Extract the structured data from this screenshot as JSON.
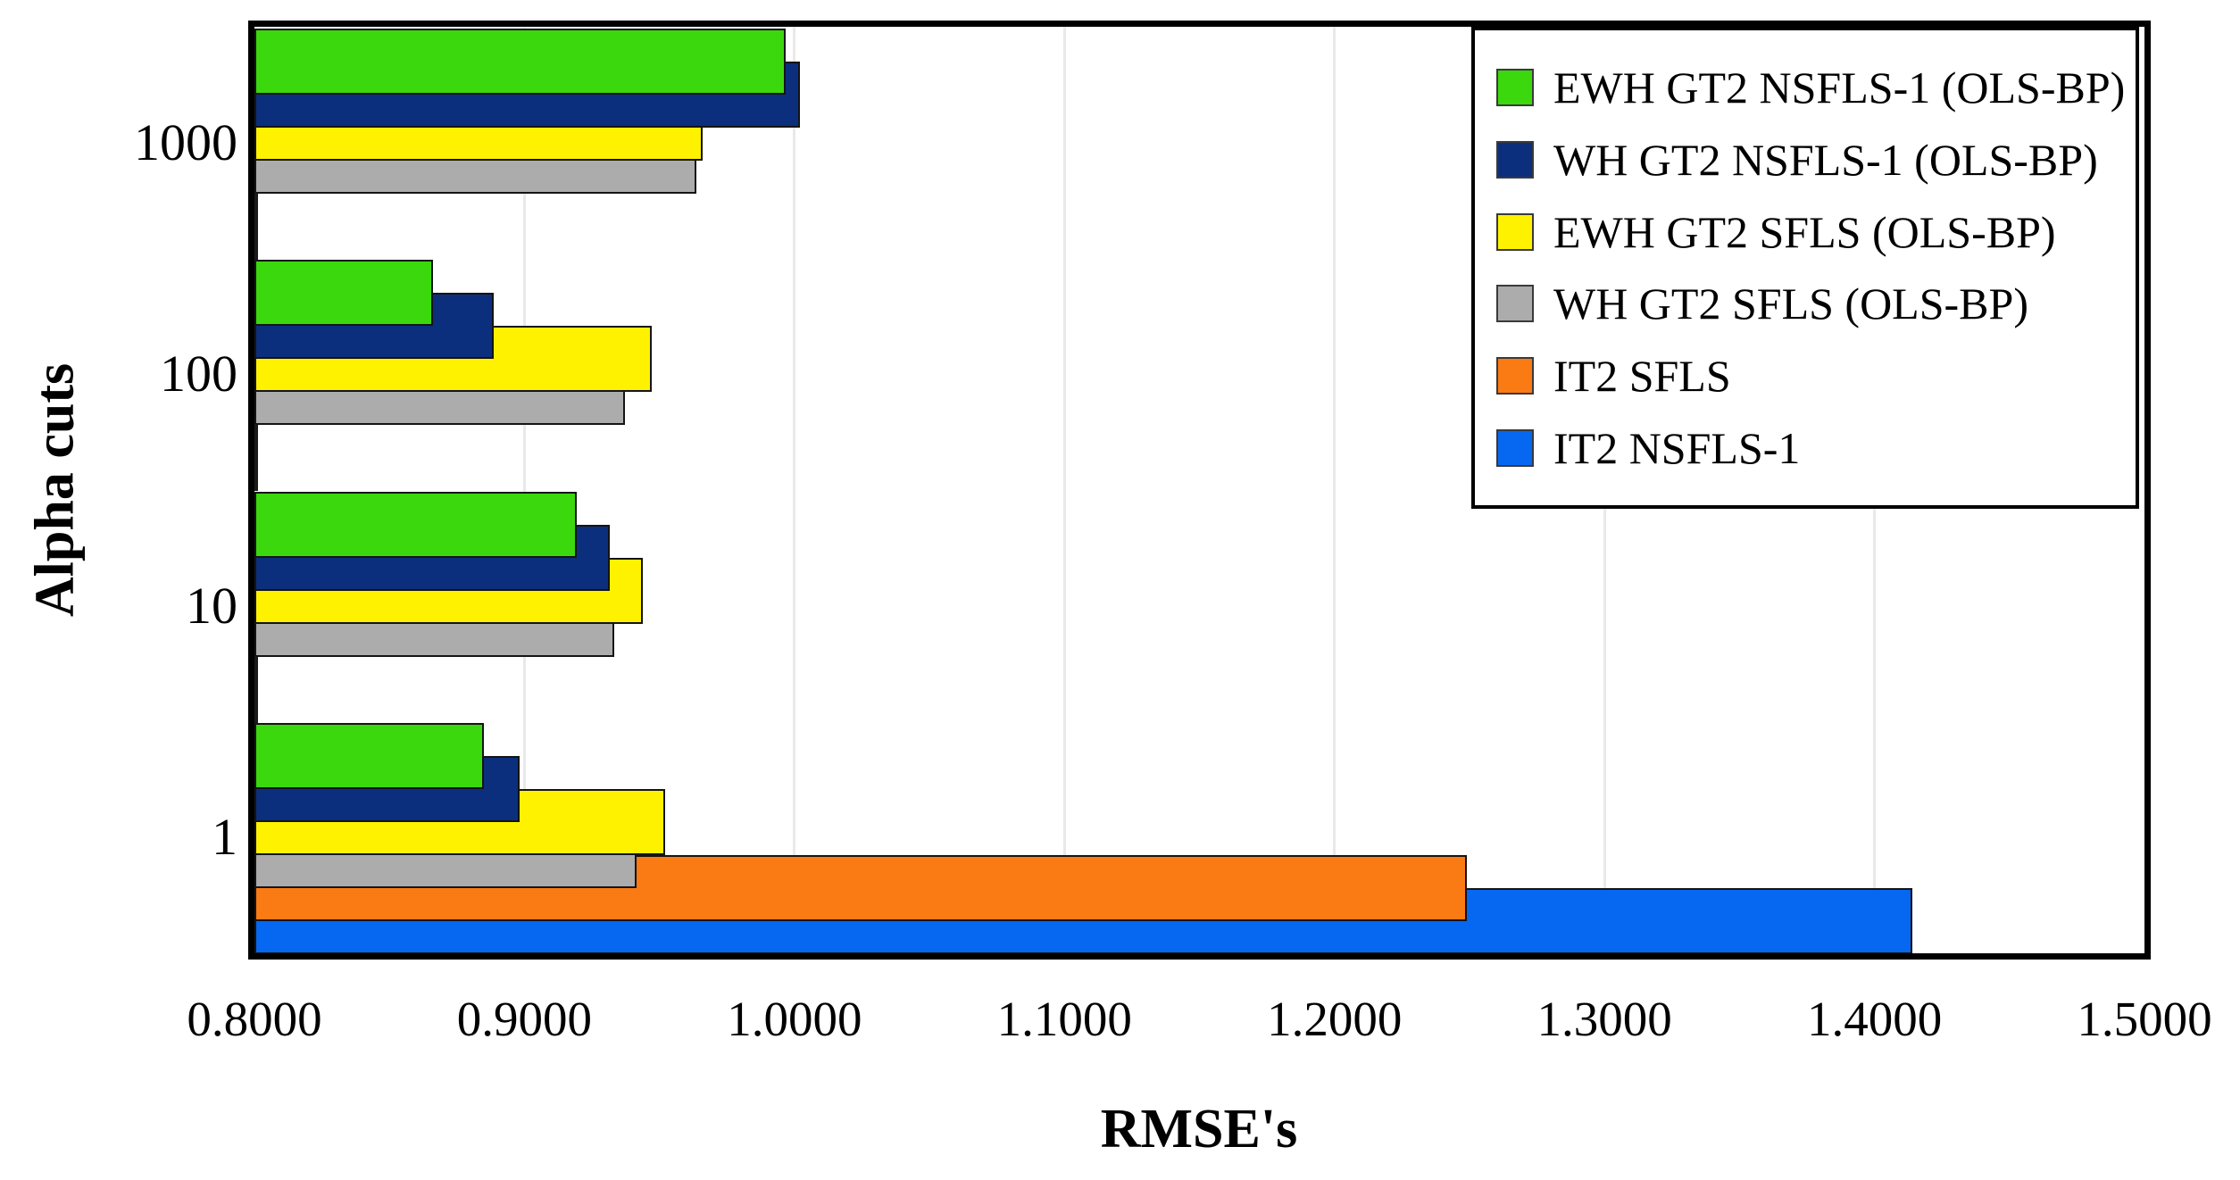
{
  "chart_data": {
    "type": "bar",
    "orientation": "horizontal",
    "xlabel": "RMSE's",
    "ylabel": "Alpha cuts",
    "xlim": [
      0.8,
      1.5
    ],
    "xticks": [
      "0.8000",
      "0.9000",
      "1.0000",
      "1.1000",
      "1.2000",
      "1.3000",
      "1.4000",
      "1.5000"
    ],
    "categories": [
      "1000",
      "100",
      "10",
      "1"
    ],
    "series": [
      {
        "name": "EWH GT2 NSFLS-1 (OLS-BP)",
        "color": "#3bd80d",
        "values": [
          0.9967,
          0.8661,
          0.9194,
          0.885
        ]
      },
      {
        "name": "WH GT2 NSFLS-1 (OLS-BP)",
        "color": "#0b2f7d",
        "values": [
          1.002,
          0.8886,
          0.9316,
          0.8982
        ]
      },
      {
        "name": "EWH GT2 SFLS (OLS-BP)",
        "color": "#fff200",
        "values": [
          0.966,
          0.9471,
          0.9438,
          0.9521
        ]
      },
      {
        "name": "WH GT2 SFLS (OLS-BP)",
        "color": "#acacac",
        "values": [
          0.9637,
          0.9372,
          0.9333,
          0.9415
        ]
      },
      {
        "name": "IT2 SFLS",
        "color": "#fa7a14",
        "values": [
          null,
          null,
          null,
          1.2491
        ]
      },
      {
        "name": "IT2 NSFLS-1",
        "color": "#0667f0",
        "values": [
          null,
          null,
          null,
          1.4141
        ]
      }
    ],
    "legend_position": "top-right",
    "grid": true,
    "plot_border_color": "#000000",
    "gridline_color": "#e9e9e9"
  }
}
